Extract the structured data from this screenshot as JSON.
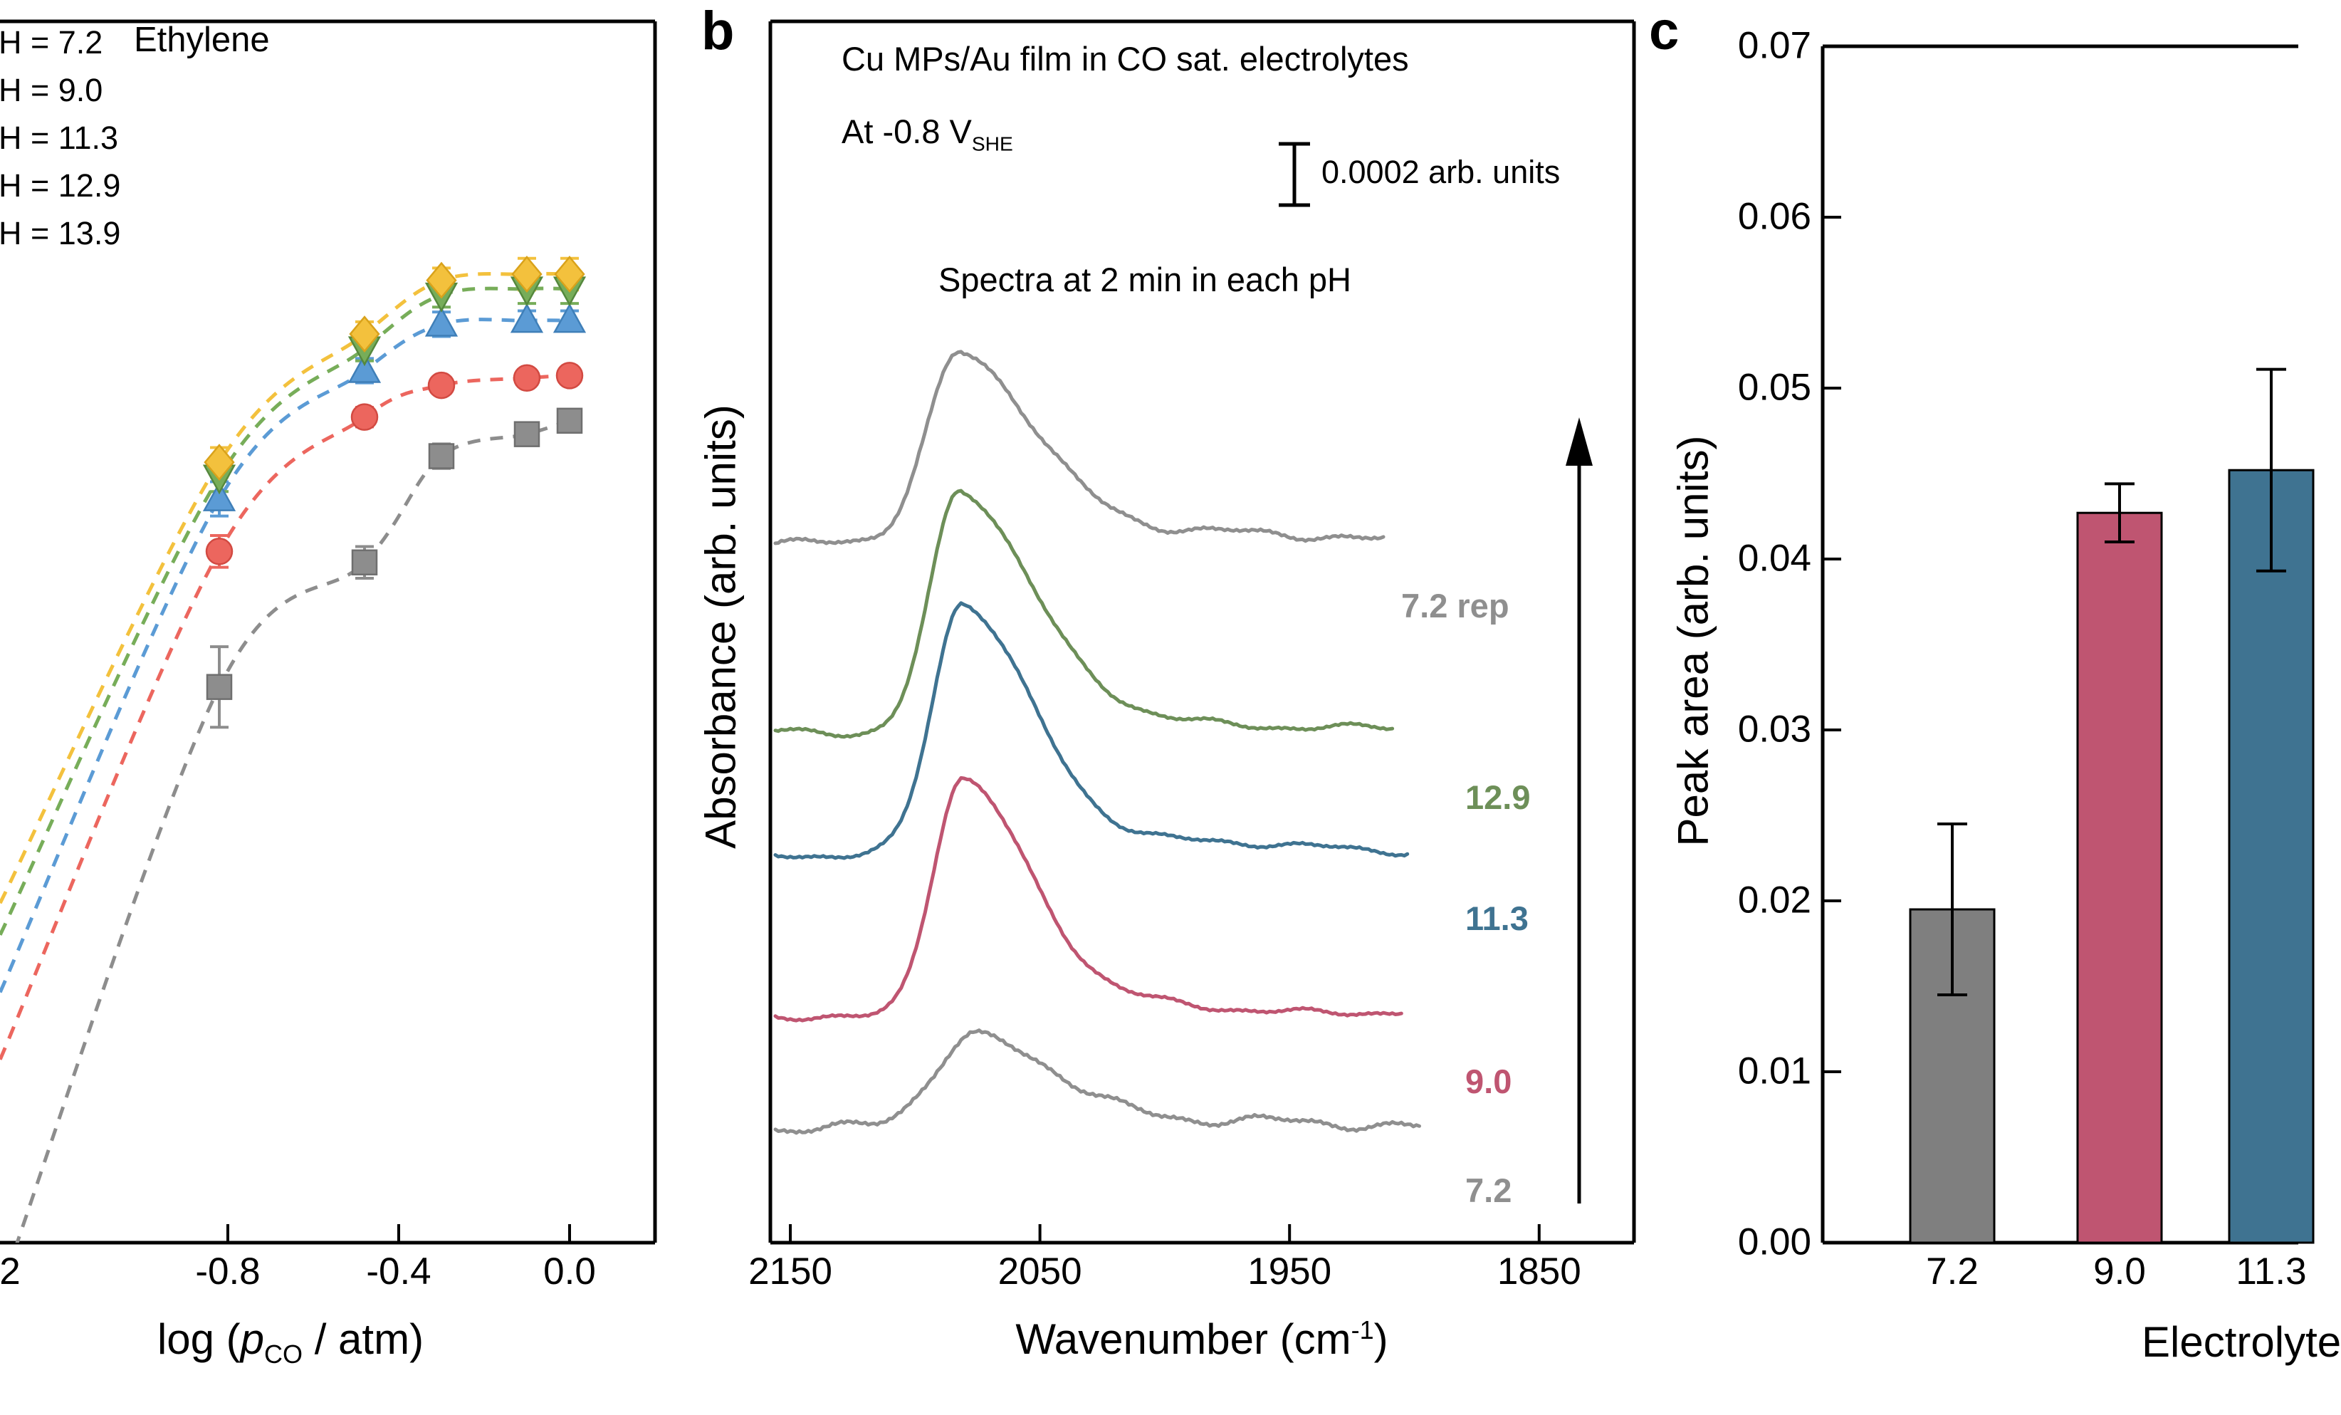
{
  "figure": {
    "bg": "#ffffff",
    "axis_color": "#000000"
  },
  "panel_a": {
    "annotation": "Ethylene",
    "legend_items": [
      "H = 7.2",
      "H = 9.0",
      "H = 11.3",
      "H = 12.9",
      "H = 13.9"
    ],
    "xlabel_pre": "log (",
    "xlabel_p": "p",
    "xlabel_sub": "CO",
    "xlabel_post": " / atm)",
    "partial_tick_label": "2"
  },
  "panel_b": {
    "panel_letter": "b",
    "header_line1": "Cu MPs/Au film in CO sat. electrolytes",
    "header_line2_pre": "At -0.8 V",
    "header_line2_sub": "SHE",
    "scalebar_label": "0.0002 arb. units",
    "annotation": "Spectra at 2 min in each pH",
    "ylabel": "Absorbance (arb. units)",
    "xlabel_pre": "Wavenumber (cm",
    "xlabel_sup": "-1",
    "xlabel_post": ")"
  },
  "panel_c": {
    "panel_letter": "c",
    "ylabel": "Peak area (arb. units)",
    "xlabel": "Electrolyte"
  },
  "chart_data": [
    {
      "id": "a",
      "type": "scatter",
      "annotation": "Ethylene",
      "xlabel": "log (p_CO / atm)",
      "x_tick_labels": [
        "-0.8",
        "-0.4",
        "0.0"
      ],
      "x_tick_values": [
        -0.8,
        -0.4,
        0.0
      ],
      "xlim_visible": [
        -1.333,
        0.2
      ],
      "legend_visible": [
        "H = 7.2",
        "H = 9.0",
        "H = 11.3",
        "H = 12.9",
        "H = 13.9"
      ],
      "note": "y-axis cropped out of screenshot; y values normalized to visible plot height (0 = bottom axis, 1 = top border)",
      "x": [
        -0.82,
        -0.48,
        -0.3,
        -0.1,
        0.0
      ],
      "series": [
        {
          "name": "pH 7.2",
          "marker": "square",
          "color": "#8d8d8d",
          "edge": "#6f6f6f",
          "edge_y": -0.04,
          "y": [
            0.455,
            0.557,
            0.644,
            0.662,
            0.673
          ],
          "yerr": [
            0.033,
            0.013,
            0.01,
            0.008,
            0.006
          ]
        },
        {
          "name": "pH 9.0",
          "marker": "circle",
          "color": "#ec665e",
          "edge": "#d24a42",
          "edge_y": 0.15,
          "y": [
            0.566,
            0.676,
            0.702,
            0.708,
            0.71
          ],
          "yerr": [
            0.013,
            0.008,
            0.006,
            0.006,
            0.006
          ]
        },
        {
          "name": "pH 11.3",
          "marker": "triangle-up",
          "color": "#5b9bd5",
          "edge": "#3f7fb8",
          "edge_y": 0.205,
          "y": [
            0.609,
            0.714,
            0.752,
            0.755,
            0.755
          ],
          "yerr": [
            0.014,
            0.01,
            0.01,
            0.008,
            0.008
          ]
        },
        {
          "name": "pH 12.9",
          "marker": "triangle-down",
          "color": "#77ad59",
          "edge": "#55883d",
          "edge_y": 0.252,
          "y": [
            0.627,
            0.732,
            0.776,
            0.781,
            0.781
          ],
          "yerr": [
            0.012,
            0.01,
            0.01,
            0.012,
            0.012
          ]
        },
        {
          "name": "pH 13.9",
          "marker": "diamond",
          "color": "#f3c13d",
          "edge": "#d9a21b",
          "edge_y": 0.278,
          "y": [
            0.639,
            0.744,
            0.788,
            0.793,
            0.793
          ],
          "yerr": [
            0.012,
            0.01,
            0.01,
            0.013,
            0.013
          ]
        }
      ]
    },
    {
      "id": "b",
      "type": "line",
      "title": "Cu MPs/Au film in CO sat. electrolytes",
      "subtitle": "At -0.8 V_SHE",
      "annotation": "Spectra at 2 min in each pH",
      "scalebar": "0.0002 arb. units",
      "xlabel": "Wavenumber (cm^-1)",
      "ylabel": "Absorbance (arb. units)",
      "x_axis_reversed": true,
      "x_tick_labels": [
        "2150",
        "2050",
        "1950",
        "1850"
      ],
      "x_tick_values": [
        2150,
        2050,
        1950,
        1850
      ],
      "xlim": [
        2158,
        1812
      ],
      "note": "stacked CO-stretch spectra; baseline and peak_height are normalized to visible plot height",
      "spectra": [
        {
          "label": "7.2",
          "color": "#8f8f8f",
          "baseline": 0.095,
          "peak_height": 0.072,
          "peak_center": 2076,
          "sigma_hi": 16,
          "sigma_lo": 34,
          "noise": 0.006,
          "x_end": 1898
        },
        {
          "label": "9.0",
          "color": "#bf5571",
          "baseline": 0.184,
          "peak_height": 0.198,
          "peak_center": 2081,
          "sigma_hi": 12,
          "sigma_lo": 26,
          "noise": 0.004,
          "x_end": 1905
        },
        {
          "label": "11.3",
          "color": "#3f7391",
          "baseline": 0.318,
          "peak_height": 0.205,
          "peak_center": 2081,
          "sigma_hi": 12,
          "sigma_lo": 27,
          "noise": 0.004,
          "x_end": 1902
        },
        {
          "label": "12.9",
          "color": "#6d8f58",
          "baseline": 0.417,
          "peak_height": 0.2,
          "peak_center": 2082,
          "sigma_hi": 12,
          "sigma_lo": 28,
          "noise": 0.004,
          "x_end": 1908
        },
        {
          "label": "7.2 rep",
          "color": "#8f8f8f",
          "baseline": 0.574,
          "peak_height": 0.153,
          "peak_center": 2082,
          "sigma_hi": 13,
          "sigma_lo": 30,
          "noise": 0.005,
          "x_end": 1912
        }
      ]
    },
    {
      "id": "c",
      "type": "bar",
      "categories": [
        "7.2",
        "9.0",
        "11.3"
      ],
      "values": [
        0.0195,
        0.0427,
        0.0452
      ],
      "errors": [
        0.005,
        0.0017,
        0.0059
      ],
      "bar_colors": [
        "#7f7f7f",
        "#bf5571",
        "#3f7391"
      ],
      "xlabel": "Electrolyte",
      "ylabel": "Peak area (arb. units)",
      "ylim": [
        0,
        0.07
      ],
      "y_tick_labels": [
        "0.00",
        "0.01",
        "0.02",
        "0.03",
        "0.04",
        "0.05",
        "0.06",
        "0.07"
      ]
    }
  ]
}
